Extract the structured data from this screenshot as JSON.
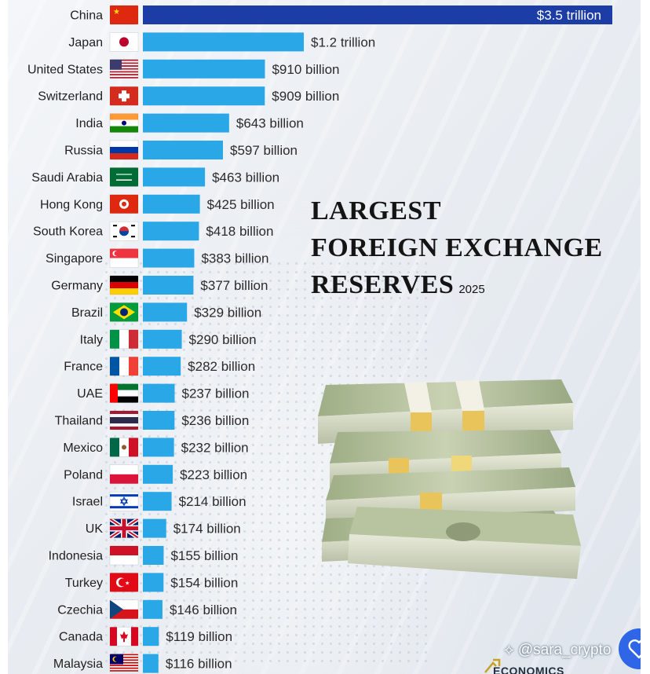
{
  "chart_data": {
    "type": "bar",
    "orientation": "horizontal",
    "title_lines": [
      "LARGEST",
      "FOREIGN EXCHANGE",
      "RESERVES"
    ],
    "year": "2025",
    "unit": "USD billion",
    "categories": [
      "China",
      "Japan",
      "United States",
      "Switzerland",
      "India",
      "Russia",
      "Saudi Arabia",
      "Hong Kong",
      "South Korea",
      "Singapore",
      "Germany",
      "Brazil",
      "Italy",
      "France",
      "UAE",
      "Thailand",
      "Mexico",
      "Poland",
      "Israel",
      "UK",
      "Indonesia",
      "Turkey",
      "Czechia",
      "Canada",
      "Malaysia"
    ],
    "values": [
      3500,
      1200,
      910,
      909,
      643,
      597,
      463,
      425,
      418,
      383,
      377,
      329,
      290,
      282,
      237,
      236,
      232,
      223,
      214,
      174,
      155,
      154,
      146,
      119,
      116
    ],
    "labels": [
      "$3.5 trillion",
      "$1.2 trillion",
      "$910 billion",
      "$909 billion",
      "$643 billion",
      "$597 billion",
      "$463 billion",
      "$425 billion",
      "$418 billion",
      "$383 billion",
      "$377 billion",
      "$329 billion",
      "$290 billion",
      "$282 billion",
      "$237 billion",
      "$236 billion",
      "$232 billion",
      "$223 billion",
      "$214 billion",
      "$174 billion",
      "$155 billion",
      "$154 billion",
      "$146 billion",
      "$119 billion",
      "$116 billion"
    ],
    "flags": [
      "china-flag",
      "japan-flag",
      "usa-flag",
      "switzerland-flag",
      "india-flag",
      "russia-flag",
      "saudi-arabia-flag",
      "hong-kong-flag",
      "south-korea-flag",
      "singapore-flag",
      "germany-flag",
      "brazil-flag",
      "italy-flag",
      "france-flag",
      "uae-flag",
      "thailand-flag",
      "mexico-flag",
      "poland-flag",
      "israel-flag",
      "uk-flag",
      "indonesia-flag",
      "turkey-flag",
      "czechia-flag",
      "canada-flag",
      "malaysia-flag"
    ],
    "colors": {
      "top_bar": "#1d3da6",
      "bar": "#2aa7e6",
      "top_label": "#ffffff",
      "label": "#2b2b2b"
    }
  },
  "overlay": {
    "credit": "@sara_crypto",
    "brand": "ECONOMICS"
  }
}
